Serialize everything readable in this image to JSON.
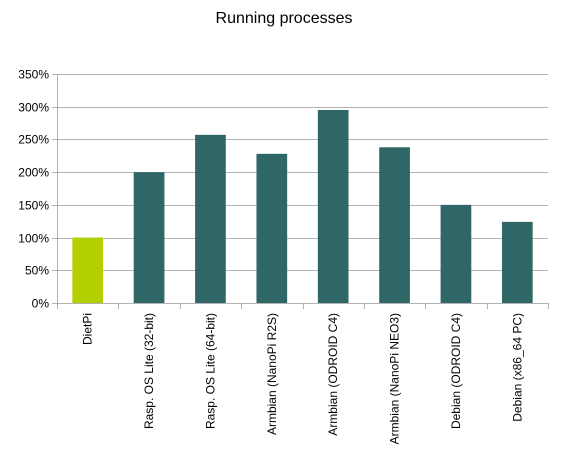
{
  "chart_data": {
    "type": "bar",
    "title": "Running processes",
    "xlabel": "",
    "ylabel": "",
    "categories": [
      "DietPi",
      "Rasp. OS Lite (32-bit)",
      "Rasp. OS Lite (64-bit)",
      "Armbian (NanoPi R2S)",
      "Armbian (ODROID C4)",
      "Armbian (NanoPi NEO3)",
      "Debian (ODROID C4)",
      "Debian (x86_64 PC)"
    ],
    "values": [
      100,
      200,
      257,
      228,
      295,
      238,
      150,
      124
    ],
    "bar_colors": [
      "#b3cf00",
      "#2f6666",
      "#2f6666",
      "#2f6666",
      "#2f6666",
      "#2f6666",
      "#2f6666",
      "#2f6666"
    ],
    "ylim": [
      0,
      350
    ],
    "yticks": [
      0,
      50,
      100,
      150,
      200,
      250,
      300,
      350
    ],
    "ytick_labels": [
      "0%",
      "50%",
      "100%",
      "150%",
      "200%",
      "250%",
      "300%",
      "350%"
    ],
    "grid": true,
    "legend": "none",
    "colors": {
      "grid": "#b3b3b3",
      "axis": "#b3b3b3"
    }
  }
}
